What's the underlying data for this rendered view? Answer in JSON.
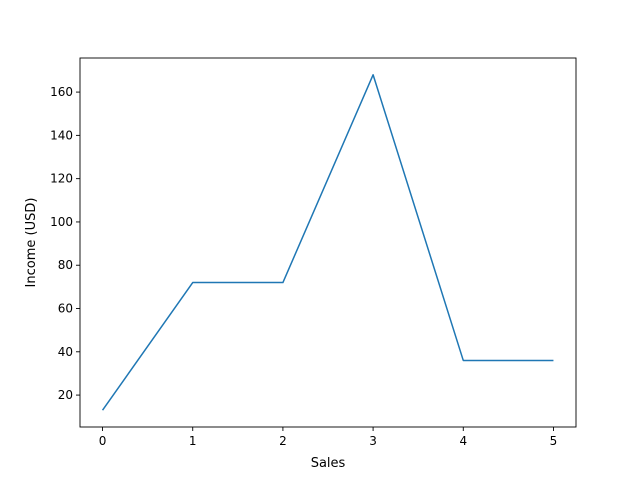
{
  "chart_data": {
    "type": "line",
    "title": "",
    "xlabel": "Sales",
    "ylabel": "Income (USD)",
    "x": [
      0,
      1,
      2,
      3,
      4,
      5
    ],
    "series": [
      {
        "values": [
          13,
          72,
          72,
          168,
          36,
          36
        ],
        "color": "#1f77b4"
      }
    ],
    "xlim": [
      -0.25,
      5.25
    ],
    "ylim": [
      5.25,
      175.75
    ],
    "xticks": [
      0,
      1,
      2,
      3,
      4,
      5
    ],
    "yticks": [
      20,
      40,
      60,
      80,
      100,
      120,
      140,
      160
    ],
    "grid": false,
    "legend": "none"
  }
}
